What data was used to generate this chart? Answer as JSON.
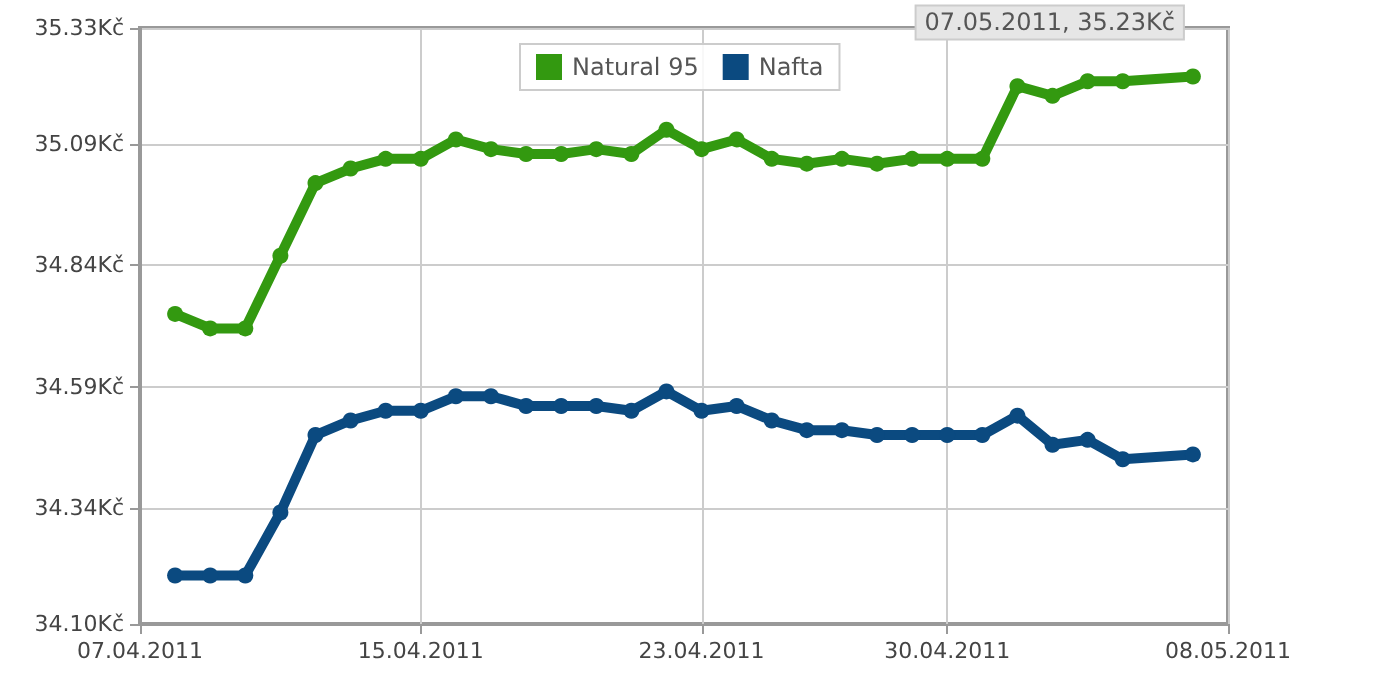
{
  "chart_data": {
    "type": "line",
    "x": [
      "2011-04-08",
      "2011-04-09",
      "2011-04-10",
      "2011-04-11",
      "2011-04-12",
      "2011-04-13",
      "2011-04-14",
      "2011-04-15",
      "2011-04-16",
      "2011-04-17",
      "2011-04-18",
      "2011-04-19",
      "2011-04-20",
      "2011-04-21",
      "2011-04-22",
      "2011-04-23",
      "2011-04-24",
      "2011-04-25",
      "2011-04-26",
      "2011-04-27",
      "2011-04-28",
      "2011-04-29",
      "2011-04-30",
      "2011-05-01",
      "2011-05-02",
      "2011-05-03",
      "2011-05-04",
      "2011-05-05",
      "2011-05-07"
    ],
    "series": [
      {
        "name": "Natural 95",
        "color": "#339910",
        "values": [
          34.74,
          34.71,
          34.71,
          34.86,
          35.01,
          35.04,
          35.06,
          35.06,
          35.1,
          35.08,
          35.07,
          35.07,
          35.08,
          35.07,
          35.12,
          35.08,
          35.1,
          35.06,
          35.05,
          35.06,
          35.05,
          35.06,
          35.06,
          35.06,
          35.21,
          35.19,
          35.22,
          35.22,
          35.23
        ]
      },
      {
        "name": "Nafta",
        "color": "#0b4a80",
        "values": [
          34.2,
          34.2,
          34.2,
          34.33,
          34.49,
          34.52,
          34.54,
          34.54,
          34.57,
          34.57,
          34.55,
          34.55,
          34.55,
          34.54,
          34.58,
          34.54,
          34.55,
          34.52,
          34.5,
          34.5,
          34.49,
          34.49,
          34.49,
          34.49,
          34.53,
          34.47,
          34.48,
          34.44,
          34.45
        ]
      }
    ],
    "xlim": [
      "2011-04-07",
      "2011-05-08"
    ],
    "xticks": [
      {
        "value": "2011-04-07",
        "label": "07.04.2011"
      },
      {
        "value": "2011-04-15",
        "label": "15.04.2011"
      },
      {
        "value": "2011-04-23",
        "label": "23.04.2011"
      },
      {
        "value": "2011-04-30",
        "label": "30.04.2011"
      },
      {
        "value": "2011-05-08",
        "label": "08.05.2011"
      }
    ],
    "ylim": [
      34.1,
      35.33
    ],
    "yticks": [
      {
        "value": 34.1,
        "label": "34.10Kč"
      },
      {
        "value": 34.34,
        "label": "34.34Kč"
      },
      {
        "value": 34.59,
        "label": "34.59Kč"
      },
      {
        "value": 34.84,
        "label": "34.84Kč"
      },
      {
        "value": 35.09,
        "label": "35.09Kč"
      },
      {
        "value": 35.33,
        "label": "35.33Kč"
      }
    ],
    "annotations": [
      {
        "text": "07.05.2011, 35.23Kč",
        "x": "2011-05-07",
        "y": 35.23
      }
    ],
    "grid": true,
    "legend": "top",
    "marker": "circle",
    "line_style": "solid"
  }
}
